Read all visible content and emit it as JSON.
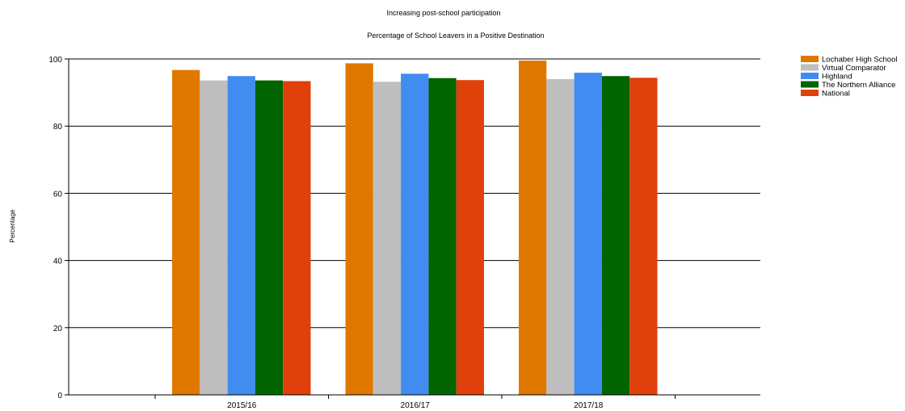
{
  "chart_data": {
    "type": "bar",
    "title": "Increasing post-school participation",
    "subtitle": "Percentage of School Leavers in a Positive Destination",
    "xlabel": "",
    "ylabel": "Percentage",
    "ylim": [
      0,
      100
    ],
    "yticks": [
      0,
      20,
      40,
      60,
      80,
      100
    ],
    "grid": true,
    "legend_position": "right",
    "categories": [
      "2015/16",
      "2016/17",
      "2017/18"
    ],
    "series": [
      {
        "name": "Lochaber High School",
        "color": "#E07800",
        "values": [
          96.7,
          98.7,
          99.5
        ]
      },
      {
        "name": "Virtual Comparator",
        "color": "#BEBEBE",
        "values": [
          93.6,
          93.2,
          94.0
        ]
      },
      {
        "name": "Highland",
        "color": "#418CF0",
        "values": [
          94.9,
          95.6,
          95.9
        ]
      },
      {
        "name": "The Northern Alliance",
        "color": "#006400",
        "values": [
          93.6,
          94.3,
          94.9
        ]
      },
      {
        "name": "National",
        "color": "#E0400A",
        "values": [
          93.4,
          93.7,
          94.4
        ]
      }
    ]
  }
}
